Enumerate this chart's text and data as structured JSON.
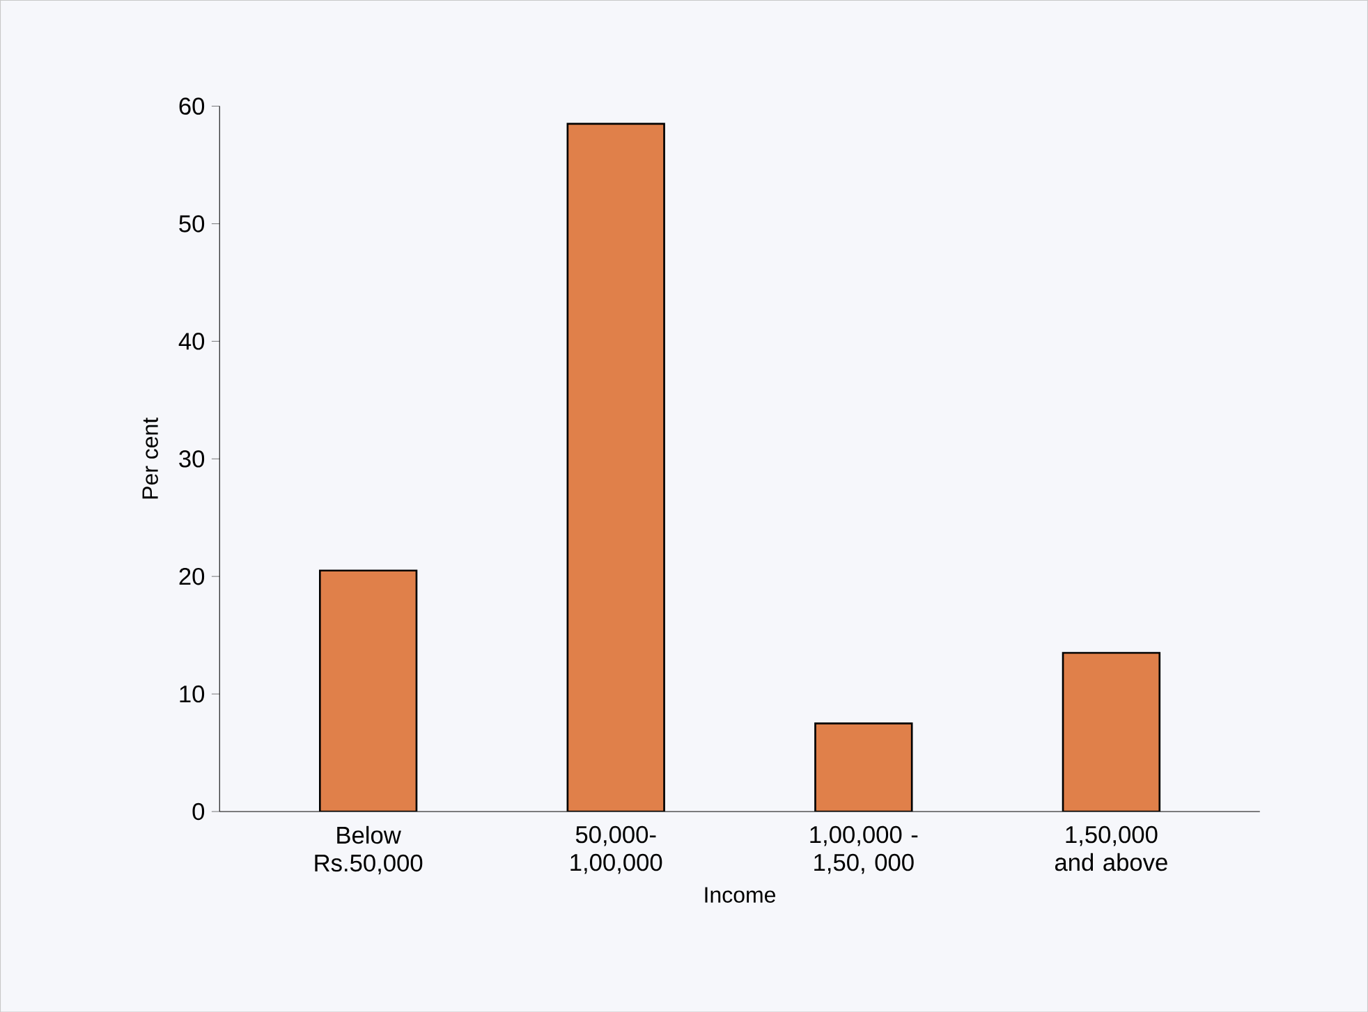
{
  "chart_data": {
    "type": "bar",
    "xlabel": "Income",
    "ylabel": "Per cent",
    "categories": [
      "Below Rs.50,000",
      "50,000- 1,00,000",
      "1,00,000 - 1,50, 000",
      "1,50,000 and above"
    ],
    "values": [
      20.5,
      58.5,
      7.5,
      13.5
    ],
    "color": "#e0804a",
    "ylim": [
      0,
      60
    ],
    "yticks": [
      0,
      10,
      20,
      30,
      40,
      50,
      60
    ],
    "grid": false
  }
}
